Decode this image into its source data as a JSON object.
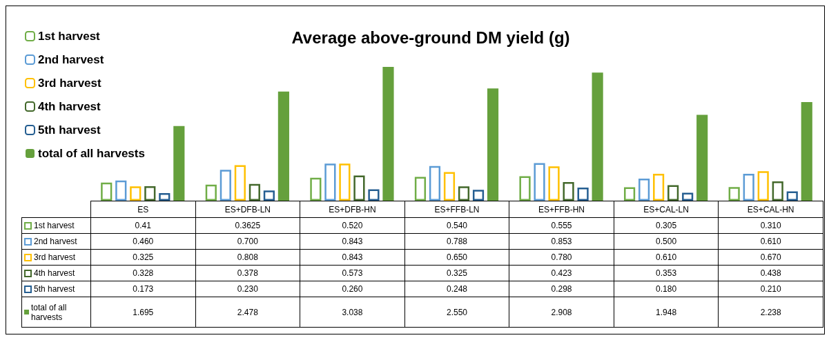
{
  "chart_data": {
    "type": "bar",
    "title": "Average above-ground DM yield (g)",
    "categories": [
      "ES",
      "ES+DFB-LN",
      "ES+DFB-HN",
      "ES+FFB-LN",
      "ES+FFB-HN",
      "ES+CAL-LN",
      "ES+CAL-HN"
    ],
    "series": [
      {
        "name": "1st harvest",
        "color": "#70ad47",
        "values": [
          0.41,
          0.3625,
          0.52,
          0.54,
          0.555,
          0.305,
          0.31
        ],
        "value_labels": [
          "0.41",
          "0.3625",
          "0.520",
          "0.540",
          "0.555",
          "0.305",
          "0.310"
        ]
      },
      {
        "name": "2nd harvest",
        "color": "#5b9bd5",
        "values": [
          0.46,
          0.7,
          0.843,
          0.788,
          0.853,
          0.5,
          0.61
        ],
        "value_labels": [
          "0.460",
          "0.700",
          "0.843",
          "0.788",
          "0.853",
          "0.500",
          "0.610"
        ]
      },
      {
        "name": "3rd harvest",
        "color": "#ffc000",
        "values": [
          0.325,
          0.808,
          0.843,
          0.65,
          0.78,
          0.61,
          0.67
        ],
        "value_labels": [
          "0.325",
          "0.808",
          "0.843",
          "0.650",
          "0.780",
          "0.610",
          "0.670"
        ]
      },
      {
        "name": "4th harvest",
        "color": "#43682b",
        "values": [
          0.328,
          0.378,
          0.573,
          0.325,
          0.423,
          0.353,
          0.438
        ],
        "value_labels": [
          "0.328",
          "0.378",
          "0.573",
          "0.325",
          "0.423",
          "0.353",
          "0.438"
        ]
      },
      {
        "name": "5th harvest",
        "color": "#255e91",
        "values": [
          0.173,
          0.23,
          0.26,
          0.248,
          0.298,
          0.18,
          0.21
        ],
        "value_labels": [
          "0.173",
          "0.230",
          "0.260",
          "0.248",
          "0.298",
          "0.180",
          "0.210"
        ]
      },
      {
        "name": "total of all harvests",
        "color": "#65a03c",
        "values": [
          1.695,
          2.478,
          3.038,
          2.55,
          2.908,
          1.948,
          2.238
        ],
        "value_labels": [
          "1.695",
          "2.478",
          "3.038",
          "2.550",
          "2.908",
          "1.948",
          "2.238"
        ]
      }
    ],
    "legend": "left"
  }
}
